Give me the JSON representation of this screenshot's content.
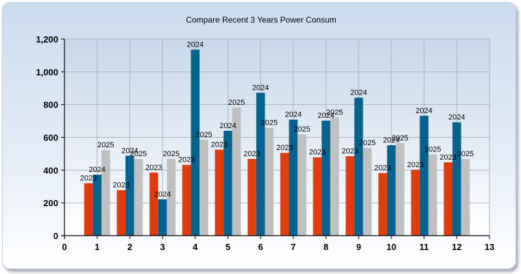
{
  "chart_data": {
    "type": "bar",
    "title": "Compare Recent 3 Years Power Consum",
    "xlabel": "",
    "ylabel": "",
    "xlim": [
      0,
      13
    ],
    "ylim": [
      0,
      1200
    ],
    "x_ticks": [
      0,
      1,
      2,
      3,
      4,
      5,
      6,
      7,
      8,
      9,
      10,
      11,
      12,
      13
    ],
    "y_ticks": [
      0,
      200,
      400,
      600,
      800,
      1000,
      1200
    ],
    "y_tick_labels": [
      "0",
      "200",
      "400",
      "600",
      "800",
      "1,000",
      "1,200"
    ],
    "grid": true,
    "categories": [
      1,
      2,
      3,
      4,
      5,
      6,
      7,
      8,
      9,
      10,
      11,
      12
    ],
    "series": [
      {
        "label": "2023",
        "color": "#e03d0e",
        "values": [
          320,
          278,
          385,
          432,
          525,
          468,
          505,
          478,
          485,
          382,
          402,
          448
        ]
      },
      {
        "label": "2024",
        "color": "#06628f",
        "values": [
          372,
          488,
          222,
          1135,
          640,
          872,
          708,
          702,
          842,
          552,
          732,
          692
        ]
      },
      {
        "label": "2025",
        "color": "#c0c0c0",
        "values": [
          522,
          468,
          468,
          585,
          782,
          658,
          618,
          722,
          535,
          565,
          495,
          468
        ]
      }
    ],
    "data_labels_shown": true
  }
}
